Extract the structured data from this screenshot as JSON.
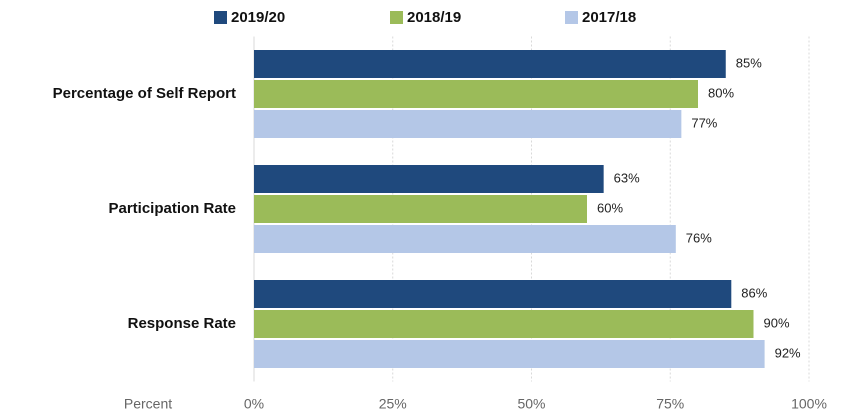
{
  "chart_data": {
    "type": "bar",
    "orientation": "horizontal",
    "categories": [
      "Percentage of Self Report",
      "Participation Rate",
      "Response Rate"
    ],
    "series": [
      {
        "name": "2019/20",
        "color": "#1f497d",
        "values": [
          85,
          63,
          86
        ],
        "value_labels": [
          "85%",
          "63%",
          "86%"
        ]
      },
      {
        "name": "2018/19",
        "color": "#9bbb59",
        "values": [
          80,
          60,
          90
        ],
        "value_labels": [
          "80%",
          "60%",
          "90%"
        ]
      },
      {
        "name": "2017/18",
        "color": "#b4c7e7",
        "values": [
          77,
          76,
          92
        ],
        "value_labels": [
          "77%",
          "76%",
          "92%"
        ]
      }
    ],
    "xlabel": "Percent",
    "xlim": [
      0,
      100
    ],
    "xticks": [
      {
        "value": 0,
        "label": "0%"
      },
      {
        "value": 25,
        "label": "25%"
      },
      {
        "value": 50,
        "label": "50%"
      },
      {
        "value": 75,
        "label": "75%"
      },
      {
        "value": 100,
        "label": "100%"
      }
    ],
    "grid": true,
    "legend": "top"
  }
}
